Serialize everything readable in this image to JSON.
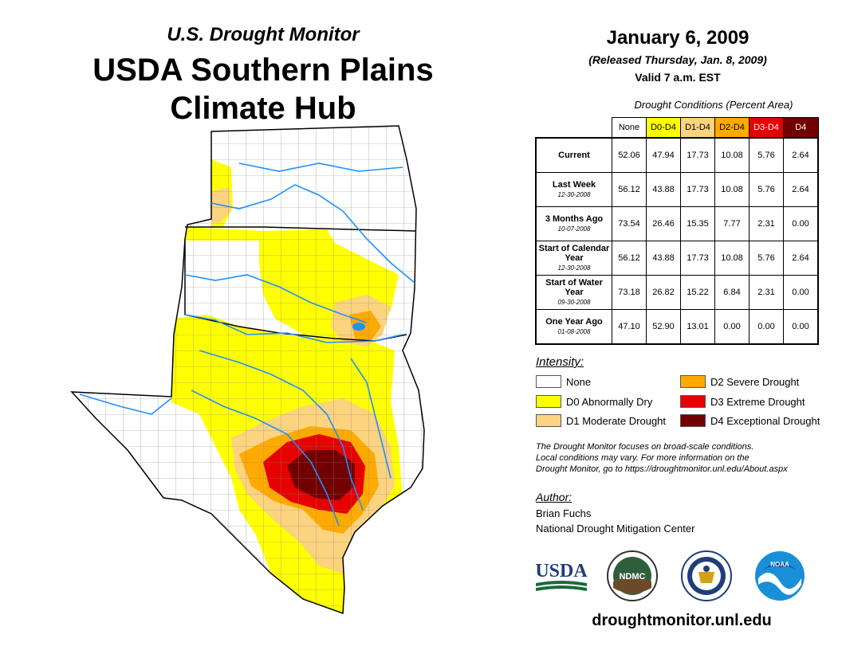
{
  "header": {
    "subtitle": "U.S. Drought Monitor",
    "title_line1": "USDA Southern Plains",
    "title_line2": "Climate Hub",
    "date": "January 6, 2009",
    "released": "(Released Thursday, Jan. 8, 2009)",
    "valid": "Valid 7 a.m. EST"
  },
  "table": {
    "caption": "Drought Conditions (Percent Area)",
    "columns": [
      "None",
      "D0-D4",
      "D1-D4",
      "D2-D4",
      "D3-D4",
      "D4"
    ],
    "column_colors": [
      "#ffffff",
      "#ffff00",
      "#fcd37f",
      "#ffaa00",
      "#e60000",
      "#730000"
    ],
    "rows": [
      {
        "label": "Current",
        "sub": "",
        "values": [
          "52.06",
          "47.94",
          "17.73",
          "10.08",
          "5.76",
          "2.64"
        ]
      },
      {
        "label": "Last Week",
        "sub": "12-30-2008",
        "values": [
          "56.12",
          "43.88",
          "17.73",
          "10.08",
          "5.76",
          "2.64"
        ]
      },
      {
        "label": "3 Months Ago",
        "sub": "10-07-2008",
        "values": [
          "73.54",
          "26.46",
          "15.35",
          "7.77",
          "2.31",
          "0.00"
        ]
      },
      {
        "label": "Start of Calendar Year",
        "sub": "12-30-2008",
        "values": [
          "56.12",
          "43.88",
          "17.73",
          "10.08",
          "5.76",
          "2.64"
        ]
      },
      {
        "label": "Start of Water Year",
        "sub": "09-30-2008",
        "values": [
          "73.18",
          "26.82",
          "15.22",
          "6.84",
          "2.31",
          "0.00"
        ]
      },
      {
        "label": "One Year Ago",
        "sub": "01-08-2008",
        "values": [
          "47.10",
          "52.90",
          "13.01",
          "0.00",
          "0.00",
          "0.00"
        ]
      }
    ]
  },
  "legend": {
    "title": "Intensity:",
    "items": [
      {
        "label": "None",
        "color": "#ffffff"
      },
      {
        "label": "D0 Abnormally Dry",
        "color": "#ffff00"
      },
      {
        "label": "D1 Moderate Drought",
        "color": "#fcd37f"
      },
      {
        "label": "D2 Severe Drought",
        "color": "#ffaa00"
      },
      {
        "label": "D3 Extreme Drought",
        "color": "#e60000"
      },
      {
        "label": "D4 Exceptional Drought",
        "color": "#730000"
      }
    ]
  },
  "note": {
    "line1": "The Drought Monitor focuses on broad-scale conditions.",
    "line2": "Local conditions may vary. For more information on the",
    "line3": "Drought Monitor, go to https://droughtmonitor.unl.edu/About.aspx"
  },
  "author": {
    "title": "Author:",
    "name": "Brian Fuchs",
    "org": "National Drought Mitigation Center"
  },
  "logos": {
    "usda": "USDA",
    "ndmc": "NDMC",
    "noaa": "NOAA"
  },
  "footer": {
    "url": "droughtmonitor.unl.edu"
  }
}
